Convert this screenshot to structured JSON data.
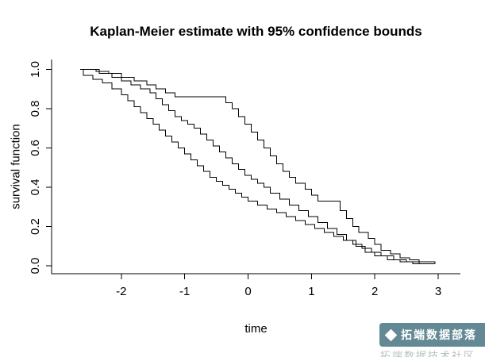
{
  "chart_data": {
    "type": "line",
    "subtype": "step",
    "title": "Kaplan-Meier estimate with 95% confidence bounds",
    "xlabel": "time",
    "ylabel": "survival function",
    "xlim": [
      -3.1,
      3.35
    ],
    "ylim": [
      -0.04,
      1.05
    ],
    "x_ticks": [
      -2,
      -1,
      0,
      1,
      2,
      3
    ],
    "x_tick_labels": [
      "-2",
      "-1",
      "0",
      "1",
      "2",
      "3"
    ],
    "y_ticks": [
      0.0,
      0.2,
      0.4,
      0.6,
      0.8,
      1.0
    ],
    "y_tick_labels": [
      "0.0",
      "0.2",
      "0.4",
      "0.6",
      "0.8",
      "1.0"
    ],
    "grid": false,
    "legend": false,
    "line_color": "#000000",
    "series": [
      {
        "name": "km_estimate",
        "steps": [
          [
            -2.65,
            1.0
          ],
          [
            -2.35,
            0.98
          ],
          [
            -2.15,
            0.96
          ],
          [
            -2.0,
            0.94
          ],
          [
            -1.85,
            0.92
          ],
          [
            -1.7,
            0.9
          ],
          [
            -1.55,
            0.88
          ],
          [
            -1.45,
            0.85
          ],
          [
            -1.35,
            0.82
          ],
          [
            -1.25,
            0.79
          ],
          [
            -1.15,
            0.76
          ],
          [
            -1.05,
            0.74
          ],
          [
            -0.95,
            0.72
          ],
          [
            -0.85,
            0.7
          ],
          [
            -0.75,
            0.67
          ],
          [
            -0.65,
            0.64
          ],
          [
            -0.55,
            0.61
          ],
          [
            -0.45,
            0.58
          ],
          [
            -0.35,
            0.55
          ],
          [
            -0.25,
            0.52
          ],
          [
            -0.15,
            0.49
          ],
          [
            -0.05,
            0.46
          ],
          [
            0.05,
            0.44
          ],
          [
            0.15,
            0.42
          ],
          [
            0.25,
            0.4
          ],
          [
            0.35,
            0.37
          ],
          [
            0.5,
            0.34
          ],
          [
            0.65,
            0.31
          ],
          [
            0.8,
            0.28
          ],
          [
            0.95,
            0.25
          ],
          [
            1.1,
            0.22
          ],
          [
            1.25,
            0.19
          ],
          [
            1.4,
            0.16
          ],
          [
            1.55,
            0.13
          ],
          [
            1.7,
            0.1
          ],
          [
            1.85,
            0.07
          ],
          [
            2.0,
            0.05
          ],
          [
            2.2,
            0.03
          ],
          [
            2.4,
            0.02
          ],
          [
            2.6,
            0.01
          ],
          [
            2.95,
            0.01
          ]
        ]
      },
      {
        "name": "upper_95",
        "steps": [
          [
            -2.65,
            1.0
          ],
          [
            -2.4,
            0.99
          ],
          [
            -2.2,
            0.98
          ],
          [
            -2.0,
            0.96
          ],
          [
            -1.8,
            0.94
          ],
          [
            -1.6,
            0.92
          ],
          [
            -1.45,
            0.9
          ],
          [
            -1.3,
            0.88
          ],
          [
            -1.15,
            0.86
          ],
          [
            -0.35,
            0.83
          ],
          [
            -0.25,
            0.8
          ],
          [
            -0.15,
            0.76
          ],
          [
            -0.05,
            0.72
          ],
          [
            0.05,
            0.68
          ],
          [
            0.15,
            0.64
          ],
          [
            0.25,
            0.6
          ],
          [
            0.35,
            0.56
          ],
          [
            0.45,
            0.52
          ],
          [
            0.55,
            0.48
          ],
          [
            0.65,
            0.45
          ],
          [
            0.75,
            0.42
          ],
          [
            0.9,
            0.39
          ],
          [
            1.0,
            0.36
          ],
          [
            1.1,
            0.33
          ],
          [
            1.45,
            0.28
          ],
          [
            1.55,
            0.24
          ],
          [
            1.65,
            0.2
          ],
          [
            1.75,
            0.17
          ],
          [
            1.9,
            0.14
          ],
          [
            2.0,
            0.11
          ],
          [
            2.1,
            0.08
          ],
          [
            2.25,
            0.06
          ],
          [
            2.4,
            0.04
          ],
          [
            2.55,
            0.03
          ],
          [
            2.7,
            0.02
          ],
          [
            2.95,
            0.01
          ]
        ]
      },
      {
        "name": "lower_95",
        "steps": [
          [
            -2.65,
            1.0
          ],
          [
            -2.6,
            0.97
          ],
          [
            -2.45,
            0.95
          ],
          [
            -2.3,
            0.93
          ],
          [
            -2.15,
            0.9
          ],
          [
            -2.0,
            0.87
          ],
          [
            -1.9,
            0.84
          ],
          [
            -1.8,
            0.81
          ],
          [
            -1.7,
            0.78
          ],
          [
            -1.6,
            0.75
          ],
          [
            -1.5,
            0.72
          ],
          [
            -1.4,
            0.69
          ],
          [
            -1.3,
            0.66
          ],
          [
            -1.2,
            0.63
          ],
          [
            -1.1,
            0.6
          ],
          [
            -1.0,
            0.57
          ],
          [
            -0.9,
            0.54
          ],
          [
            -0.8,
            0.51
          ],
          [
            -0.7,
            0.48
          ],
          [
            -0.6,
            0.45
          ],
          [
            -0.5,
            0.43
          ],
          [
            -0.4,
            0.41
          ],
          [
            -0.3,
            0.39
          ],
          [
            -0.2,
            0.37
          ],
          [
            -0.1,
            0.35
          ],
          [
            0.0,
            0.33
          ],
          [
            0.15,
            0.31
          ],
          [
            0.3,
            0.29
          ],
          [
            0.45,
            0.27
          ],
          [
            0.6,
            0.25
          ],
          [
            0.75,
            0.23
          ],
          [
            0.9,
            0.21
          ],
          [
            1.05,
            0.19
          ],
          [
            1.2,
            0.17
          ],
          [
            1.35,
            0.15
          ],
          [
            1.5,
            0.13
          ],
          [
            1.65,
            0.11
          ],
          [
            1.8,
            0.09
          ],
          [
            1.95,
            0.07
          ],
          [
            2.1,
            0.05
          ],
          [
            2.3,
            0.03
          ],
          [
            2.5,
            0.02
          ],
          [
            2.7,
            0.01
          ],
          [
            2.95,
            0.01
          ]
        ]
      }
    ]
  },
  "watermark": {
    "line1": "拓端数据部落",
    "line2": "拓端数据技术社区",
    "bg_color": "#56808b",
    "text_color": "#ffffff"
  }
}
